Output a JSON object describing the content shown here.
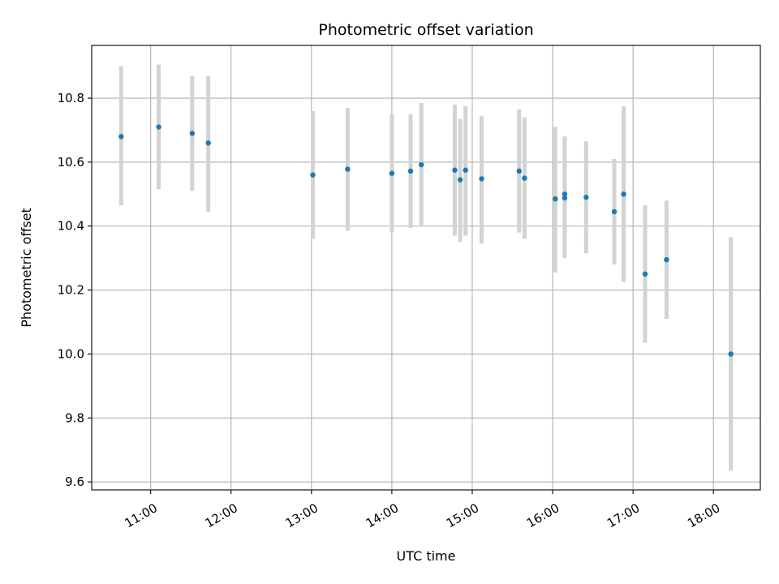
{
  "chart_data": {
    "type": "scatter",
    "title": "Photometric offset variation",
    "xlabel": "UTC time",
    "ylabel": "Photometric offset",
    "x_axis": "time (hours UTC)",
    "xlim": [
      "10:16",
      "18:35"
    ],
    "ylim": [
      9.575,
      10.965
    ],
    "xticks": [
      "11:00",
      "12:00",
      "13:00",
      "14:00",
      "15:00",
      "16:00",
      "17:00",
      "18:00"
    ],
    "yticks": [
      9.6,
      9.8,
      10.0,
      10.2,
      10.4,
      10.6,
      10.8
    ],
    "ytick_labels": [
      "9.6",
      "9.8",
      "10.0",
      "10.2",
      "10.4",
      "10.6",
      "10.8"
    ],
    "grid": true,
    "colors": {
      "point": "#1f77b4",
      "errorbar": "#d3d3d3"
    },
    "series": [
      {
        "points": [
          {
            "x": "10:38",
            "y": 10.68,
            "low": 10.465,
            "high": 10.9
          },
          {
            "x": "11:06",
            "y": 10.71,
            "low": 10.515,
            "high": 10.905
          },
          {
            "x": "11:31",
            "y": 10.69,
            "low": 10.51,
            "high": 10.87
          },
          {
            "x": "11:43",
            "y": 10.66,
            "low": 10.445,
            "high": 10.87
          },
          {
            "x": "13:01",
            "y": 10.56,
            "low": 10.36,
            "high": 10.76
          },
          {
            "x": "13:27",
            "y": 10.578,
            "low": 10.385,
            "high": 10.77
          },
          {
            "x": "14:00",
            "y": 10.565,
            "low": 10.38,
            "high": 10.75
          },
          {
            "x": "14:14",
            "y": 10.572,
            "low": 10.395,
            "high": 10.75
          },
          {
            "x": "14:22",
            "y": 10.592,
            "low": 10.4,
            "high": 10.785
          },
          {
            "x": "14:47",
            "y": 10.575,
            "low": 10.37,
            "high": 10.78
          },
          {
            "x": "14:51",
            "y": 10.545,
            "low": 10.35,
            "high": 10.735
          },
          {
            "x": "14:55",
            "y": 10.575,
            "low": 10.37,
            "high": 10.775
          },
          {
            "x": "15:07",
            "y": 10.548,
            "low": 10.345,
            "high": 10.745
          },
          {
            "x": "15:35",
            "y": 10.572,
            "low": 10.38,
            "high": 10.765
          },
          {
            "x": "15:39",
            "y": 10.55,
            "low": 10.36,
            "high": 10.74
          },
          {
            "x": "16:02",
            "y": 10.485,
            "low": 10.255,
            "high": 10.71
          },
          {
            "x": "16:09",
            "y": 10.488,
            "low": 10.3,
            "high": 10.68
          },
          {
            "x": "16:09",
            "y": 10.5,
            "low": 10.3,
            "high": 10.68
          },
          {
            "x": "16:25",
            "y": 10.49,
            "low": 10.315,
            "high": 10.665
          },
          {
            "x": "16:46",
            "y": 10.445,
            "low": 10.28,
            "high": 10.61
          },
          {
            "x": "16:53",
            "y": 10.5,
            "low": 10.225,
            "high": 10.775
          },
          {
            "x": "17:09",
            "y": 10.25,
            "low": 10.035,
            "high": 10.465
          },
          {
            "x": "17:25",
            "y": 10.295,
            "low": 10.11,
            "high": 10.48
          },
          {
            "x": "18:13",
            "y": 10.0,
            "low": 9.635,
            "high": 10.365
          }
        ]
      }
    ]
  }
}
